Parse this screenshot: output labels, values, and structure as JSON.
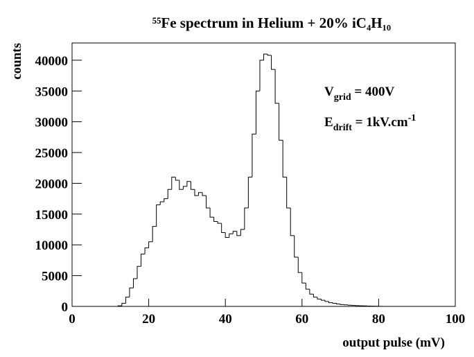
{
  "chart_data": {
    "type": "histogram",
    "title": "⁵⁵Fe spectrum in Helium + 20% iC₄H₁₀",
    "xlabel": "output pulse (mV)",
    "ylabel": "counts",
    "annotations": [
      {
        "parts": [
          "V",
          "grid",
          " = 400V"
        ]
      },
      {
        "parts": [
          "E",
          "drift",
          " = 1kV.cm",
          "-1"
        ]
      }
    ],
    "bins": [
      0,
      1,
      2,
      3,
      4,
      5,
      6,
      7,
      8,
      9,
      10,
      11,
      12,
      13,
      14,
      15,
      16,
      17,
      18,
      19,
      20,
      21,
      22,
      23,
      24,
      25,
      26,
      27,
      28,
      29,
      30,
      31,
      32,
      33,
      34,
      35,
      36,
      37,
      38,
      39,
      40,
      41,
      42,
      43,
      44,
      45,
      46,
      47,
      48,
      49,
      50,
      51,
      52,
      53,
      54,
      55,
      56,
      57,
      58,
      59,
      60,
      61,
      62,
      63,
      64,
      65,
      66,
      67,
      68,
      69,
      70,
      71,
      72,
      73,
      74,
      75,
      76,
      77,
      78,
      79,
      80,
      81,
      82,
      83,
      84,
      85,
      86,
      87,
      88,
      89,
      90,
      91,
      92,
      93,
      94,
      95,
      96,
      97,
      98,
      99,
      100
    ],
    "values": [
      0,
      0,
      0,
      0,
      0,
      0,
      0,
      0,
      0,
      0,
      0,
      0,
      100,
      500,
      1500,
      3000,
      4500,
      6500,
      8500,
      9500,
      10500,
      13000,
      16500,
      17000,
      17500,
      19000,
      21000,
      20500,
      19000,
      19500,
      20300,
      19000,
      18000,
      18500,
      18000,
      16000,
      14500,
      13800,
      13500,
      12000,
      11200,
      11800,
      12200,
      11500,
      12500,
      16000,
      21000,
      28000,
      35000,
      40000,
      41000,
      40800,
      38500,
      33000,
      27000,
      21000,
      16000,
      11500,
      8000,
      5500,
      3800,
      2800,
      2000,
      1500,
      1200,
      1000,
      800,
      600,
      500,
      400,
      300,
      250,
      200,
      150,
      120,
      100,
      80,
      60,
      40,
      30,
      20,
      0,
      0,
      0,
      0,
      0,
      0,
      0,
      0,
      0,
      0,
      0,
      0,
      0,
      0,
      0,
      0,
      0,
      0,
      0
    ],
    "color": "#000000",
    "xlim": [
      0,
      100
    ],
    "xticks": [
      0,
      20,
      40,
      60,
      80,
      100
    ],
    "ylim": [
      0,
      42800
    ],
    "yticks": [
      0,
      5000,
      10000,
      15000,
      20000,
      25000,
      30000,
      35000,
      40000
    ]
  }
}
